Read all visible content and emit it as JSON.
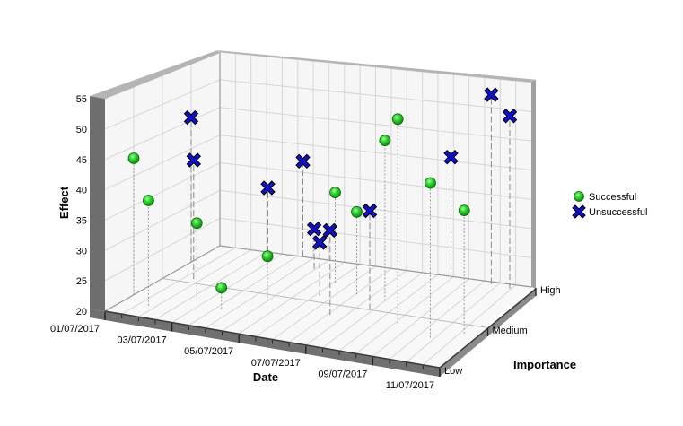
{
  "chart_data": {
    "type": "scatter",
    "projection": "3d",
    "grid": true,
    "legend_position": "right",
    "x_axis": {
      "label": "Date",
      "range": [
        "01/07/2017 00:00",
        "11/07/2017 00:00"
      ],
      "tick_labels": [
        "01/07/2017",
        "03/07/2017",
        "05/07/2017",
        "07/07/2017",
        "09/07/2017",
        "11/07/2017"
      ]
    },
    "y_axis": {
      "label": "Effect",
      "range": [
        20,
        55
      ],
      "tick_labels": [
        "20",
        "25",
        "30",
        "35",
        "40",
        "45",
        "50",
        "55"
      ]
    },
    "z_axis": {
      "label": "Importance",
      "range": [
        0,
        2
      ],
      "tick_labels": [
        "Low",
        "Medium",
        "High"
      ]
    },
    "series": [
      {
        "name": "Successful",
        "marker": "sphere",
        "color": "#22c322",
        "points": [
          {
            "date": "01/07/2017 00:00",
            "importance": 0.5,
            "effect": 43
          },
          {
            "date": "01/07/2017 19:00",
            "importance": 0.3,
            "effect": 37.5
          },
          {
            "date": "02/07/2017 18:00",
            "importance": 0.6,
            "effect": 33
          },
          {
            "date": "03/07/2017 16:00",
            "importance": 0.5,
            "effect": 23.5
          },
          {
            "date": "04/07/2017 12:00",
            "importance": 0.85,
            "effect": 27.5
          },
          {
            "date": "05/07/2017 13:00",
            "importance": 1.5,
            "effect": 35.5
          },
          {
            "date": "06/07/2017 13:00",
            "importance": 1.3,
            "effect": 34
          },
          {
            "date": "07/07/2017 12:00",
            "importance": 1.25,
            "effect": 47
          },
          {
            "date": "08/07/2017 14:00",
            "importance": 0.8,
            "effect": 53.5
          },
          {
            "date": "09/07/2017 21:00",
            "importance": 0.6,
            "effect": 45
          },
          {
            "date": "10/07/2017 15:00",
            "importance": 0.8,
            "effect": 40
          }
        ]
      },
      {
        "name": "Unsuccessful",
        "marker": "cross",
        "color": "#1010c8",
        "points": [
          {
            "date": "01/07/2017 00:00",
            "importance": 1.5,
            "effect": 45.5
          },
          {
            "date": "01/07/2017 19:00",
            "importance": 1.1,
            "effect": 40.5
          },
          {
            "date": "02/07/2017 13:00",
            "importance": 2.0,
            "effect": 31.5
          },
          {
            "date": "03/07/2017 16:00",
            "importance": 2.0,
            "effect": 37
          },
          {
            "date": "04/07/2017 11:00",
            "importance": 1.75,
            "effect": 27
          },
          {
            "date": "05/07/2017 15:00",
            "importance": 1.15,
            "effect": 29
          },
          {
            "date": "06/07/2017 14:00",
            "importance": 0.75,
            "effect": 34
          },
          {
            "date": "07/07/2017 10:00",
            "importance": 1.0,
            "effect": 36.5
          },
          {
            "date": "08/07/2017 12:00",
            "importance": 1.95,
            "effect": 41
          },
          {
            "date": "09/07/2017 19:00",
            "importance": 1.95,
            "effect": 52.5
          },
          {
            "date": "10/07/2017 11:00",
            "importance": 1.9,
            "effect": 49.5
          }
        ]
      }
    ]
  }
}
